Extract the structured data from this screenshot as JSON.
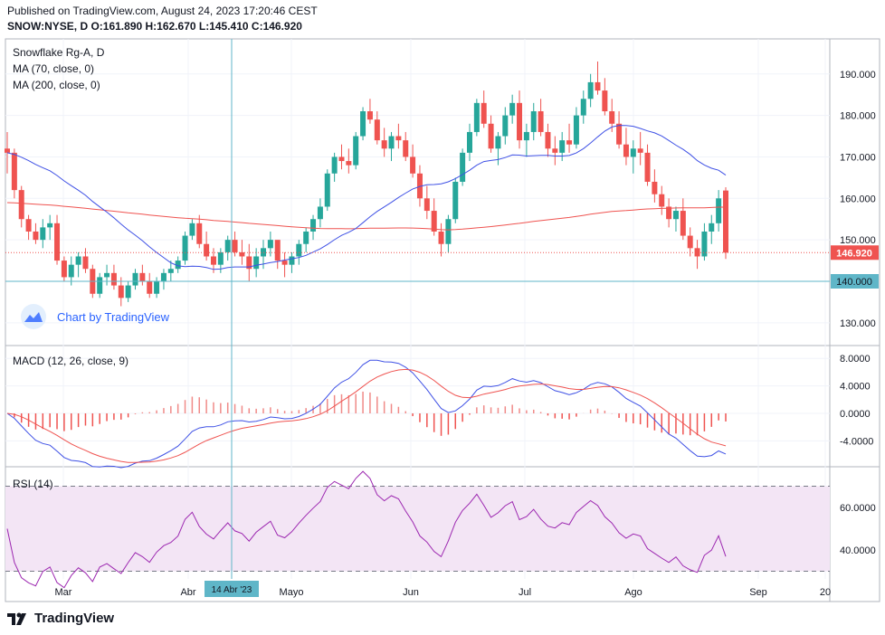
{
  "header": {
    "published": "Published on TradingView.com, August 24, 2023 17:20:46 CEST",
    "ohlc": "SNOW:NYSE, D O:161.890 H:162.670 L:145.410 C:146.920"
  },
  "legend": {
    "symbol": "Snowflake Rg-A, D",
    "ma70": "MA (70, close, 0)",
    "ma200": "MA (200, close, 0)",
    "macd": "MACD (12, 26, close, 9)",
    "rsi": "RSI (14)"
  },
  "watermark": "Chart by TradingView",
  "footer": {
    "brand": "TradingView"
  },
  "price_axis": {
    "ticks": [
      "190.000",
      "180.000",
      "170.000",
      "160.000",
      "150.000",
      "130.000"
    ],
    "last_price_label": "146.920",
    "crosshair_label": "140.000"
  },
  "macd_axis": {
    "ticks": [
      "8.0000",
      "4.0000",
      "0.0000",
      "-4.0000"
    ]
  },
  "rsi_axis": {
    "ticks": [
      "60.0000",
      "40.0000"
    ]
  },
  "time_axis": {
    "labels": [
      "Mar",
      "Abr",
      "Mayo",
      "Jun",
      "Jul",
      "Ago",
      "Sep",
      "20"
    ],
    "crosshair_label": "14 Abr '23"
  },
  "colors": {
    "up": "#26a69a",
    "down": "#ef5350",
    "ma70": "#3f51e5",
    "ma200": "#ef5350",
    "macd": "#3f51e5",
    "signal": "#ef5350",
    "rsi": "#9c27b0",
    "rsi_band": "#f3e5f5",
    "crosshair": "#5fb6c8",
    "last_price": "#ef5350",
    "brand_blue": "#2962ff"
  },
  "chart_data": {
    "type": "candlestick",
    "ohlc_seed": [
      [
        172,
        176,
        166,
        171
      ],
      [
        171,
        172,
        160,
        162
      ],
      [
        162,
        163,
        153,
        155
      ],
      [
        155,
        156,
        150,
        152
      ],
      [
        152,
        154,
        149,
        150
      ],
      [
        150,
        155,
        148,
        153
      ],
      [
        153,
        156,
        150,
        154
      ],
      [
        154,
        156,
        144,
        145
      ],
      [
        145,
        146,
        140,
        141
      ],
      [
        141,
        146,
        139,
        144
      ],
      [
        144,
        147,
        141,
        146
      ],
      [
        146,
        148,
        142,
        143
      ],
      [
        143,
        144,
        136,
        137
      ],
      [
        137,
        142,
        136,
        141
      ],
      [
        141,
        144,
        139,
        142
      ],
      [
        142,
        144,
        138,
        139
      ],
      [
        139,
        141,
        134,
        136
      ],
      [
        136,
        140,
        135,
        139
      ],
      [
        139,
        143,
        138,
        142
      ],
      [
        142,
        144,
        139,
        140
      ],
      [
        140,
        142,
        136,
        137
      ],
      [
        137,
        141,
        136,
        140
      ],
      [
        140,
        143,
        138,
        142
      ],
      [
        142,
        145,
        140,
        143
      ],
      [
        143,
        146,
        142,
        145
      ],
      [
        145,
        152,
        144,
        151
      ],
      [
        151,
        155,
        150,
        154
      ],
      [
        154,
        156,
        148,
        149
      ],
      [
        149,
        152,
        145,
        146
      ],
      [
        146,
        148,
        142,
        144
      ],
      [
        144,
        148,
        142,
        147
      ],
      [
        147,
        151,
        145,
        150
      ],
      [
        150,
        152,
        146,
        147
      ],
      [
        147,
        150,
        144,
        146
      ],
      [
        146,
        149,
        140,
        143
      ],
      [
        143,
        148,
        141,
        146
      ],
      [
        146,
        150,
        143,
        148
      ],
      [
        148,
        152,
        146,
        150
      ],
      [
        150,
        149,
        143,
        145
      ],
      [
        145,
        147,
        141,
        144
      ],
      [
        144,
        147,
        142,
        146
      ],
      [
        146,
        150,
        144,
        149
      ],
      [
        149,
        153,
        147,
        152
      ],
      [
        152,
        156,
        150,
        155
      ],
      [
        155,
        160,
        153,
        158
      ],
      [
        158,
        167,
        157,
        166
      ],
      [
        166,
        171,
        164,
        170
      ],
      [
        170,
        173,
        167,
        169
      ],
      [
        169,
        172,
        166,
        168
      ],
      [
        168,
        176,
        167,
        175
      ],
      [
        175,
        182,
        174,
        181
      ],
      [
        181,
        184,
        178,
        179
      ],
      [
        179,
        181,
        173,
        174
      ],
      [
        174,
        177,
        170,
        172
      ],
      [
        172,
        176,
        169,
        175
      ],
      [
        175,
        178,
        172,
        174
      ],
      [
        174,
        176,
        169,
        170
      ],
      [
        170,
        173,
        165,
        166
      ],
      [
        166,
        168,
        158,
        160
      ],
      [
        160,
        163,
        155,
        157
      ],
      [
        157,
        160,
        151,
        152
      ],
      [
        152,
        154,
        146,
        149
      ],
      [
        149,
        156,
        147,
        155
      ],
      [
        155,
        165,
        154,
        164
      ],
      [
        164,
        172,
        163,
        171
      ],
      [
        171,
        178,
        169,
        176
      ],
      [
        176,
        184,
        175,
        183
      ],
      [
        183,
        186,
        177,
        178
      ],
      [
        178,
        180,
        171,
        172
      ],
      [
        172,
        176,
        168,
        175
      ],
      [
        175,
        182,
        173,
        180
      ],
      [
        180,
        185,
        178,
        183
      ],
      [
        183,
        186,
        172,
        174
      ],
      [
        174,
        178,
        170,
        176
      ],
      [
        176,
        183,
        174,
        181
      ],
      [
        181,
        184,
        175,
        176
      ],
      [
        176,
        178,
        170,
        172
      ],
      [
        172,
        175,
        168,
        171
      ],
      [
        171,
        176,
        169,
        174
      ],
      [
        174,
        178,
        171,
        173
      ],
      [
        173,
        182,
        172,
        180
      ],
      [
        180,
        186,
        178,
        184
      ],
      [
        184,
        190,
        182,
        188
      ],
      [
        188,
        193,
        185,
        186
      ],
      [
        186,
        189,
        180,
        181
      ],
      [
        181,
        184,
        176,
        178
      ],
      [
        178,
        181,
        172,
        173
      ],
      [
        173,
        177,
        168,
        170
      ],
      [
        170,
        174,
        166,
        172
      ],
      [
        172,
        176,
        168,
        171
      ],
      [
        171,
        173,
        163,
        164
      ],
      [
        164,
        167,
        159,
        161
      ],
      [
        161,
        163,
        156,
        158
      ],
      [
        158,
        160,
        153,
        155
      ],
      [
        155,
        158,
        152,
        157
      ],
      [
        157,
        160,
        150,
        151
      ],
      [
        151,
        153,
        146,
        148
      ],
      [
        148,
        150,
        143,
        146
      ],
      [
        146,
        154,
        145,
        152
      ],
      [
        152,
        156,
        149,
        154
      ],
      [
        154,
        162,
        152,
        160
      ],
      [
        161.89,
        162.67,
        145.41,
        146.92
      ]
    ]
  }
}
